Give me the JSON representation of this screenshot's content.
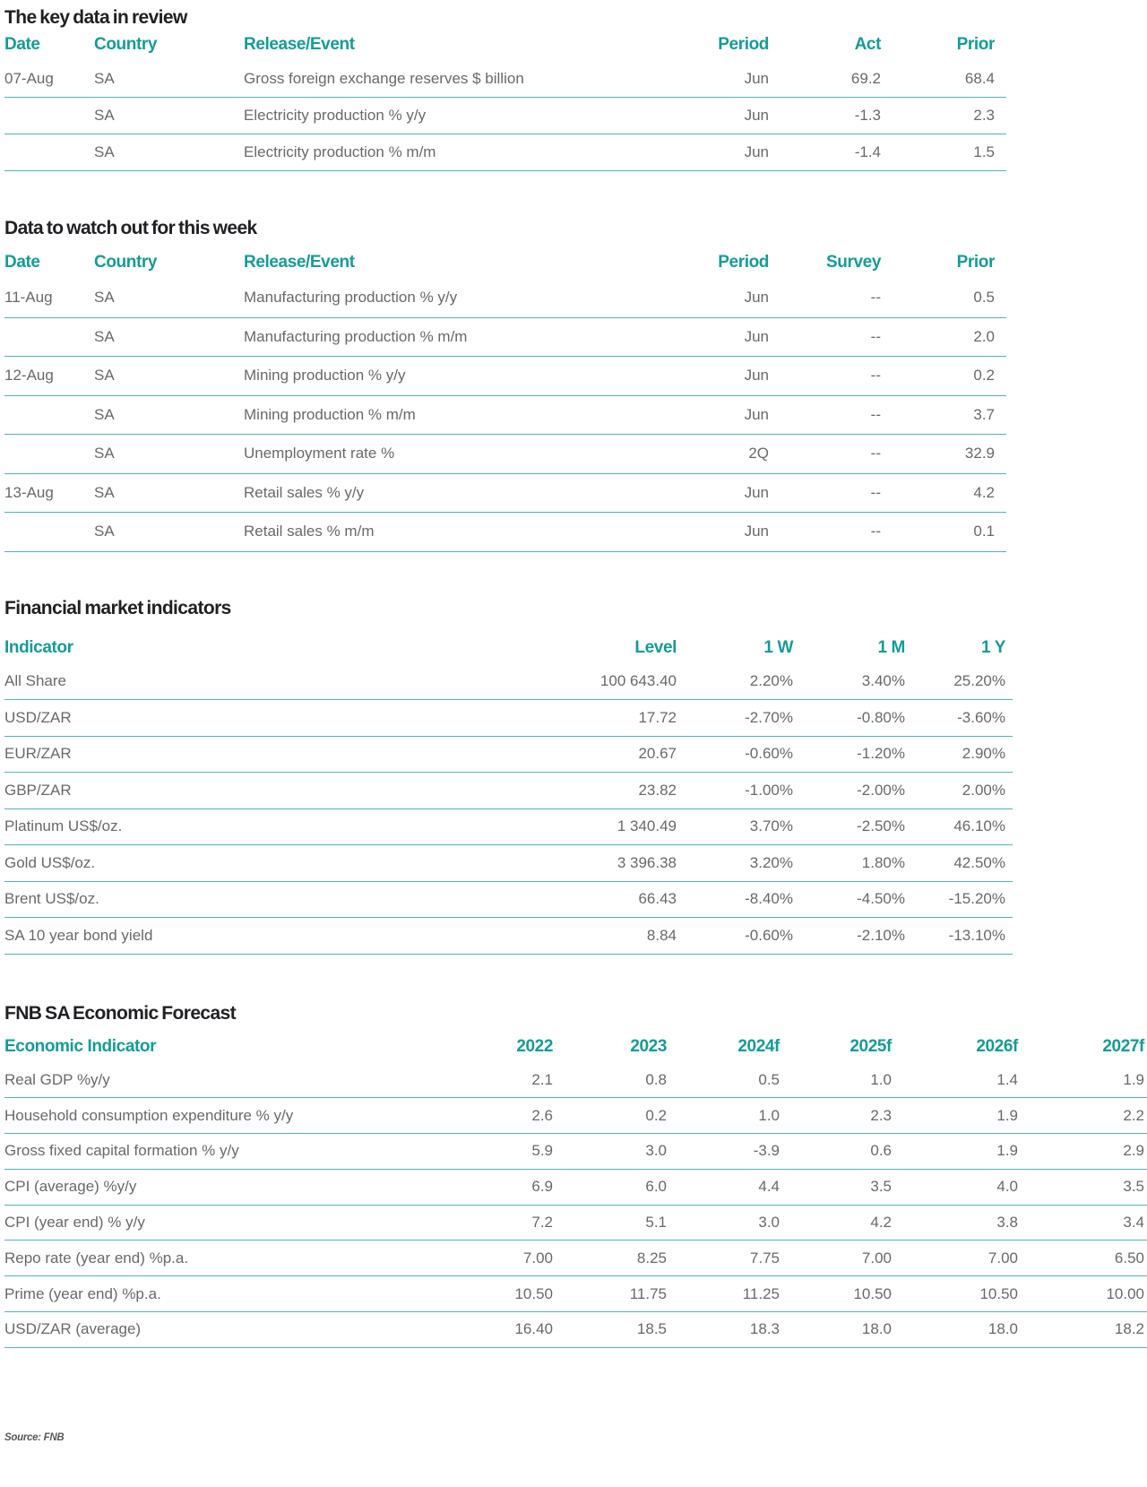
{
  "colors": {
    "teal_header_text": "#149c98",
    "teal_rule": "#4fb6b2",
    "title_text": "#202124",
    "body_text": "#68696c"
  },
  "t1": {
    "title": "The key data in review",
    "headers": [
      "Date",
      "Country",
      "Release/Event",
      "Period",
      "Act",
      "Prior"
    ],
    "rows": [
      [
        "07-Aug",
        "SA",
        "Gross foreign exchange reserves $ billion",
        "Jun",
        "69.2",
        "68.4"
      ],
      [
        "",
        "SA",
        "Electricity production % y/y",
        "Jun",
        "-1.3",
        "2.3"
      ],
      [
        "",
        "SA",
        "Electricity production % m/m",
        "Jun",
        "-1.4",
        "1.5"
      ]
    ]
  },
  "t2": {
    "title": "Data to watch out for this week",
    "headers": [
      "Date",
      "Country",
      "Release/Event",
      "Period",
      "Survey",
      "Prior"
    ],
    "rows": [
      [
        "11-Aug",
        "SA",
        "Manufacturing production % y/y",
        "Jun",
        "--",
        "0.5"
      ],
      [
        "",
        "SA",
        "Manufacturing production % m/m",
        "Jun",
        "--",
        "2.0"
      ],
      [
        "12-Aug",
        "SA",
        "Mining production % y/y",
        "Jun",
        "--",
        "0.2"
      ],
      [
        "",
        "SA",
        "Mining production % m/m",
        "Jun",
        "--",
        "3.7"
      ],
      [
        "",
        "SA",
        "Unemployment rate %",
        "2Q",
        "--",
        "32.9"
      ],
      [
        "13-Aug",
        "SA",
        "Retail sales % y/y",
        "Jun",
        "--",
        "4.2"
      ],
      [
        "",
        "SA",
        "Retail sales % m/m",
        "Jun",
        "--",
        "0.1"
      ]
    ]
  },
  "t3": {
    "title": "Financial market indicators",
    "headers": [
      "Indicator",
      "Level",
      "1 W",
      "1 M",
      "1 Y"
    ],
    "rows": [
      [
        "All Share",
        "100 643.40",
        "2.20%",
        "3.40%",
        "25.20%"
      ],
      [
        "USD/ZAR",
        "17.72",
        "-2.70%",
        "-0.80%",
        "-3.60%"
      ],
      [
        "EUR/ZAR",
        "20.67",
        "-0.60%",
        "-1.20%",
        "2.90%"
      ],
      [
        "GBP/ZAR",
        "23.82",
        "-1.00%",
        "-2.00%",
        "2.00%"
      ],
      [
        "Platinum US$/oz.",
        "1 340.49",
        "3.70%",
        "-2.50%",
        "46.10%"
      ],
      [
        "Gold US$/oz.",
        "3 396.38",
        "3.20%",
        "1.80%",
        "42.50%"
      ],
      [
        "Brent US$/oz.",
        "66.43",
        "-8.40%",
        "-4.50%",
        "-15.20%"
      ],
      [
        "SA 10 year bond yield",
        "8.84",
        "-0.60%",
        "-2.10%",
        "-13.10%"
      ]
    ]
  },
  "t4": {
    "title": "FNB SA Economic Forecast",
    "headers": [
      "Economic Indicator",
      "2022",
      "2023",
      "2024f",
      "2025f",
      "2026f",
      "2027f"
    ],
    "rows": [
      [
        "Real GDP %y/y",
        "2.1",
        "0.8",
        "0.5",
        "1.0",
        "1.4",
        "1.9"
      ],
      [
        "Household consumption expenditure % y/y",
        "2.6",
        "0.2",
        "1.0",
        "2.3",
        "1.9",
        "2.2"
      ],
      [
        "Gross fixed capital formation % y/y",
        "5.9",
        "3.0",
        "-3.9",
        "0.6",
        "1.9",
        "2.9"
      ],
      [
        "CPI (average) %y/y",
        "6.9",
        "6.0",
        "4.4",
        "3.5",
        "4.0",
        "3.5"
      ],
      [
        "CPI (year end) % y/y",
        "7.2",
        "5.1",
        "3.0",
        "4.2",
        "3.8",
        "3.4"
      ],
      [
        "Repo rate (year end) %p.a.",
        "7.00",
        "8.25",
        "7.75",
        "7.00",
        "7.00",
        "6.50"
      ],
      [
        "Prime (year end) %p.a.",
        "10.50",
        "11.75",
        "11.25",
        "10.50",
        "10.50",
        "10.00"
      ],
      [
        "USD/ZAR (average)",
        "16.40",
        "18.5",
        "18.3",
        "18.0",
        "18.0",
        "18.2"
      ]
    ]
  },
  "source_note": "Source: FNB"
}
